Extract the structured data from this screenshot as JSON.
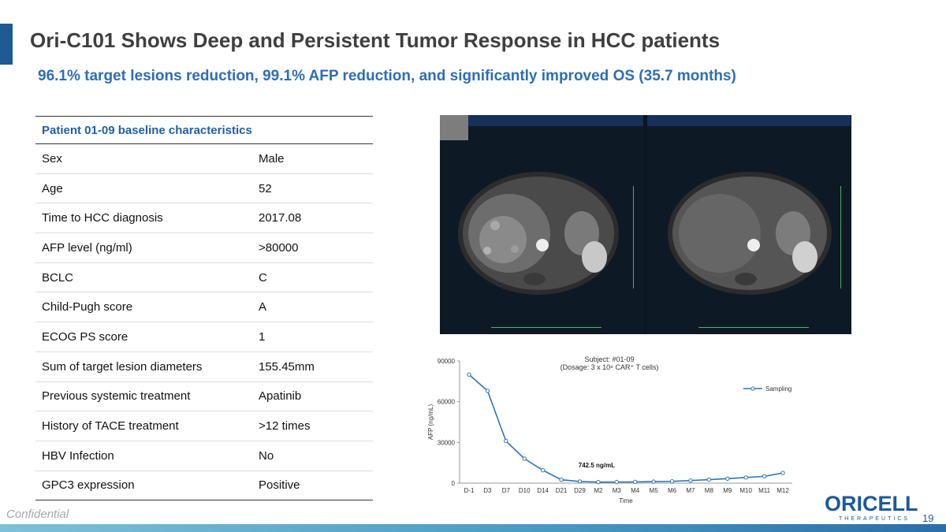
{
  "slide": {
    "title": "Ori-C101 Shows Deep and Persistent Tumor Response in HCC patients",
    "subtitle": "96.1% target lesions reduction, 99.1% AFP reduction, and significantly improved OS (35.7 months)",
    "confidential": "Confidential",
    "page_number": "19"
  },
  "table": {
    "header": "Patient 01-09 baseline characteristics",
    "rows": [
      {
        "label": "Sex",
        "value": "Male"
      },
      {
        "label": "Age",
        "value": "52"
      },
      {
        "label": "Time to HCC diagnosis",
        "value": "2017.08"
      },
      {
        "label": "AFP level (ng/ml)",
        "value": ">80000"
      },
      {
        "label": "BCLC",
        "value": "C"
      },
      {
        "label": "Child-Pugh score",
        "value": "A"
      },
      {
        "label": "ECOG PS score",
        "value": "1"
      },
      {
        "label": "Sum of target lesion diameters",
        "value": "155.45mm"
      },
      {
        "label": "Previous systemic treatment",
        "value": "Apatinib"
      },
      {
        "label": "History of TACE treatment",
        "value": ">12 times"
      },
      {
        "label": "HBV Infection",
        "value": "No"
      },
      {
        "label": "GPC3 expression",
        "value": "Positive"
      }
    ]
  },
  "logo": {
    "word": "ORICELL",
    "sub": "THERAPEUTICS"
  },
  "colors": {
    "accent": "#1e5a94",
    "subtitle": "#2e6db4",
    "series": "#2f74b8"
  },
  "chart_data": {
    "type": "line",
    "title": "Subject: #01-09",
    "subtitle": "(Dosage: 3 x 10⁸ CAR⁺ T cells)",
    "xlabel": "Time",
    "ylabel": "AFP (ng/mL)",
    "ylim": [
      0,
      90000
    ],
    "yticks": [
      "0",
      "30000",
      "60000",
      "90000"
    ],
    "legend_position": "top-right",
    "grid": false,
    "categories": [
      "D-1",
      "D3",
      "D7",
      "D10",
      "D14",
      "D21",
      "D29",
      "M2",
      "M3",
      "M4",
      "M5",
      "M6",
      "M7",
      "M8",
      "M9",
      "M10",
      "M11",
      "M12"
    ],
    "series": [
      {
        "name": "Sampling",
        "values": [
          80000,
          68000,
          31000,
          18000,
          9500,
          2500,
          1200,
          742.5,
          800,
          900,
          1100,
          1300,
          1900,
          2600,
          3300,
          4200,
          5000,
          7500
        ]
      }
    ],
    "annotations": [
      {
        "category": "M2",
        "text": "742.5 ng/mL"
      }
    ]
  }
}
